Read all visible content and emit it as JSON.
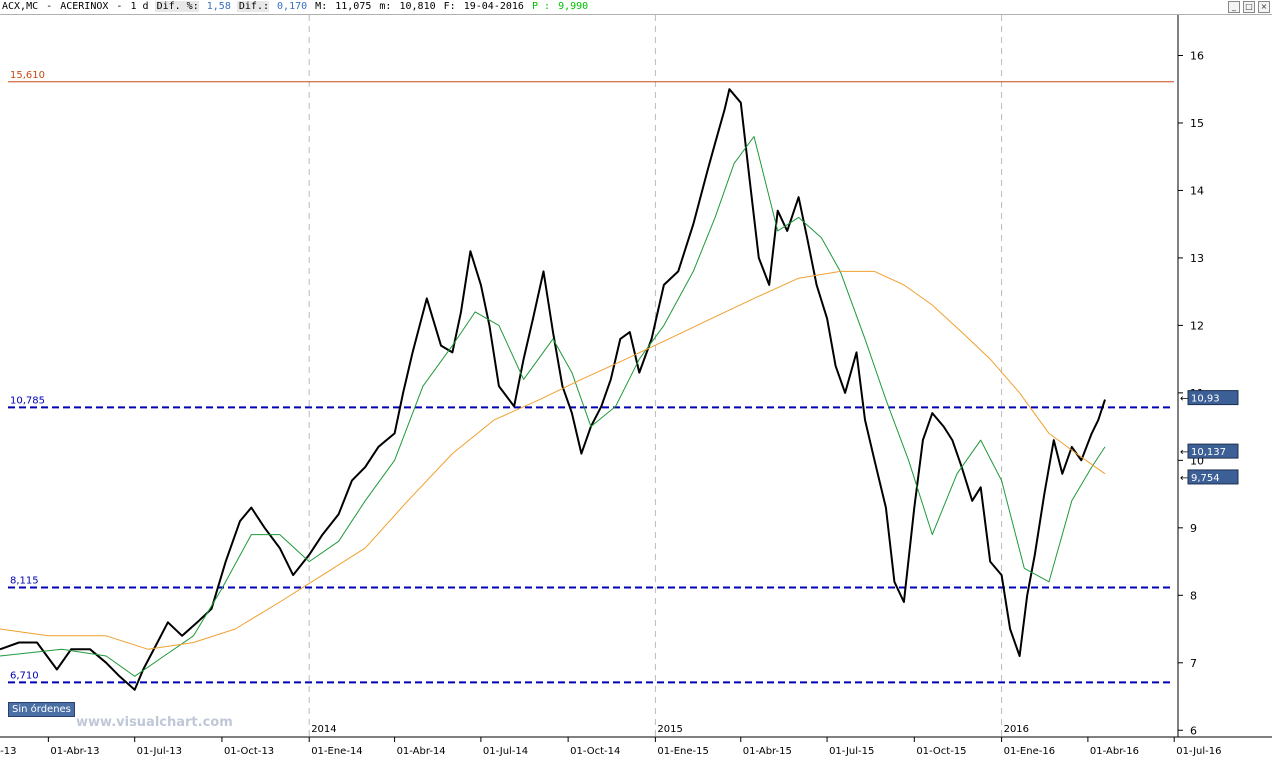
{
  "header": {
    "symbol": "ACX,MC",
    "name": "ACERINOX",
    "period": "1 d",
    "pct_label": "Dif. %:",
    "pct_value": "1,58",
    "dif_label": "Dif.:",
    "dif_value": "0,170",
    "max_label": "M:",
    "max_value": "11,075",
    "min_label": "m:",
    "min_value": "10,810",
    "date_label": "F:",
    "date_value": "19-04-2016",
    "price_label": "P :",
    "price_value": "9,990"
  },
  "window_buttons": [
    "_",
    "□",
    "×"
  ],
  "orders_button": "Sin órdenes",
  "watermark": "www.visualchart.com",
  "colors": {
    "price": "#000000",
    "ma_short": "#1f9a3a",
    "ma_long": "#f0a030",
    "resistance_line": "#c84a14",
    "support_line": "#0000b4",
    "badge": "#3c5f96",
    "grid": "#bbbbbb"
  },
  "chart_data": {
    "type": "line",
    "yticks": [
      6,
      7,
      8,
      9,
      10,
      11,
      12,
      13,
      14,
      15,
      16
    ],
    "ylim": [
      5.9,
      16.6
    ],
    "year_labels": [
      {
        "label": "2014",
        "x": "2014-01-01"
      },
      {
        "label": "2015",
        "x": "2015-01-01"
      },
      {
        "label": "2016",
        "x": "2016-01-01"
      }
    ],
    "xticks": [
      {
        "label": "01-Ene-13",
        "x": "2013-01-01"
      },
      {
        "label": "01-Abr-13",
        "x": "2013-04-01"
      },
      {
        "label": "01-Jul-13",
        "x": "2013-07-01"
      },
      {
        "label": "01-Oct-13",
        "x": "2013-10-01"
      },
      {
        "label": "01-Ene-14",
        "x": "2014-01-01"
      },
      {
        "label": "01-Abr-14",
        "x": "2014-04-01"
      },
      {
        "label": "01-Jul-14",
        "x": "2014-07-01"
      },
      {
        "label": "01-Oct-14",
        "x": "2014-10-01"
      },
      {
        "label": "01-Ene-15",
        "x": "2015-01-01"
      },
      {
        "label": "01-Abr-15",
        "x": "2015-04-01"
      },
      {
        "label": "01-Jul-15",
        "x": "2015-07-01"
      },
      {
        "label": "01-Oct-15",
        "x": "2015-10-01"
      },
      {
        "label": "01-Ene-16",
        "x": "2016-01-01"
      },
      {
        "label": "01-Abr-16",
        "x": "2016-04-01"
      },
      {
        "label": "01-Jul-16",
        "x": "2016-07-01"
      }
    ],
    "xlim": [
      "2013-02-09",
      "2016-07-05"
    ],
    "level_lines": [
      {
        "value": 15.61,
        "label": "15,610",
        "style": "solid",
        "color": "#c84a14"
      },
      {
        "value": 10.785,
        "label": "10,785",
        "style": "dashed",
        "color": "#0000b4"
      },
      {
        "value": 8.115,
        "label": "8,115",
        "style": "dashed",
        "color": "#0000b4"
      },
      {
        "value": 6.71,
        "label": "6,710",
        "style": "dashed",
        "color": "#0000b4"
      }
    ],
    "badges": [
      {
        "value": 10.93,
        "label": "10,93"
      },
      {
        "value": 10.137,
        "label": "10,137"
      },
      {
        "value": 9.754,
        "label": "9,754"
      }
    ],
    "series": [
      {
        "key": "price",
        "x": [
          "2013-02-09",
          "2013-03-01",
          "2013-03-20",
          "2013-04-10",
          "2013-04-25",
          "2013-05-15",
          "2013-06-01",
          "2013-06-15",
          "2013-07-01",
          "2013-07-10",
          "2013-07-25",
          "2013-08-05",
          "2013-08-20",
          "2013-09-05",
          "2013-09-20",
          "2013-10-05",
          "2013-10-20",
          "2013-11-01",
          "2013-11-15",
          "2013-12-01",
          "2013-12-15",
          "2014-01-01",
          "2014-01-15",
          "2014-02-01",
          "2014-02-15",
          "2014-03-01",
          "2014-03-15",
          "2014-04-01",
          "2014-04-10",
          "2014-04-20",
          "2014-05-05",
          "2014-05-20",
          "2014-06-01",
          "2014-06-10",
          "2014-06-20",
          "2014-07-01",
          "2014-07-10",
          "2014-07-20",
          "2014-08-05",
          "2014-08-15",
          "2014-08-25",
          "2014-09-05",
          "2014-09-15",
          "2014-09-25",
          "2014-10-05",
          "2014-10-15",
          "2014-10-25",
          "2014-11-05",
          "2014-11-15",
          "2014-11-25",
          "2014-12-05",
          "2014-12-15",
          "2014-12-28",
          "2015-01-10",
          "2015-01-25",
          "2015-02-10",
          "2015-02-25",
          "2015-03-05",
          "2015-03-15",
          "2015-03-20",
          "2015-04-01",
          "2015-04-10",
          "2015-04-20",
          "2015-05-01",
          "2015-05-10",
          "2015-05-20",
          "2015-06-01",
          "2015-06-10",
          "2015-06-20",
          "2015-07-01",
          "2015-07-10",
          "2015-07-20",
          "2015-08-01",
          "2015-08-10",
          "2015-08-20",
          "2015-09-01",
          "2015-09-10",
          "2015-09-20",
          "2015-10-01",
          "2015-10-10",
          "2015-10-20",
          "2015-11-01",
          "2015-11-10",
          "2015-11-20",
          "2015-12-01",
          "2015-12-10",
          "2015-12-20",
          "2016-01-01",
          "2016-01-10",
          "2016-01-20",
          "2016-01-28",
          "2016-02-05",
          "2016-02-15",
          "2016-02-25",
          "2016-03-05",
          "2016-03-15",
          "2016-03-25",
          "2016-04-05",
          "2016-04-12",
          "2016-04-19"
        ],
        "y": [
          7.2,
          7.3,
          7.3,
          6.9,
          7.2,
          7.2,
          7.0,
          6.8,
          6.6,
          6.9,
          7.3,
          7.6,
          7.4,
          7.6,
          7.8,
          8.5,
          9.1,
          9.3,
          9.0,
          8.7,
          8.3,
          8.6,
          8.9,
          9.2,
          9.7,
          9.9,
          10.2,
          10.4,
          11.0,
          11.6,
          12.4,
          11.7,
          11.6,
          12.2,
          13.1,
          12.6,
          12.0,
          11.1,
          10.8,
          11.5,
          12.1,
          12.8,
          11.9,
          11.1,
          10.7,
          10.1,
          10.5,
          10.8,
          11.2,
          11.8,
          11.9,
          11.3,
          11.8,
          12.6,
          12.8,
          13.5,
          14.3,
          14.7,
          15.2,
          15.5,
          15.3,
          14.2,
          13.0,
          12.6,
          13.7,
          13.4,
          13.9,
          13.3,
          12.6,
          12.1,
          11.4,
          11.0,
          11.6,
          10.6,
          10.0,
          9.3,
          8.2,
          7.9,
          9.3,
          10.3,
          10.7,
          10.5,
          10.3,
          9.9,
          9.4,
          9.6,
          8.5,
          8.3,
          7.5,
          7.1,
          8.0,
          8.6,
          9.5,
          10.3,
          9.8,
          10.2,
          10.0,
          10.4,
          10.6,
          10.9
        ]
      },
      {
        "key": "ma_short",
        "x": [
          "2013-02-09",
          "2013-04-15",
          "2013-06-01",
          "2013-07-01",
          "2013-08-01",
          "2013-09-01",
          "2013-10-01",
          "2013-11-01",
          "2013-12-01",
          "2014-01-01",
          "2014-02-01",
          "2014-03-01",
          "2014-04-01",
          "2014-05-01",
          "2014-06-01",
          "2014-06-25",
          "2014-07-20",
          "2014-08-15",
          "2014-09-15",
          "2014-10-05",
          "2014-10-25",
          "2014-11-20",
          "2014-12-15",
          "2015-01-10",
          "2015-02-10",
          "2015-03-05",
          "2015-03-25",
          "2015-04-15",
          "2015-05-10",
          "2015-06-01",
          "2015-06-25",
          "2015-07-15",
          "2015-08-10",
          "2015-09-01",
          "2015-09-25",
          "2015-10-20",
          "2015-11-15",
          "2015-12-10",
          "2016-01-01",
          "2016-01-25",
          "2016-02-20",
          "2016-03-15",
          "2016-04-05",
          "2016-04-19"
        ],
        "y": [
          7.1,
          7.2,
          7.1,
          6.8,
          7.1,
          7.4,
          8.1,
          8.9,
          8.9,
          8.5,
          8.8,
          9.4,
          10.0,
          11.1,
          11.7,
          12.2,
          12.0,
          11.2,
          11.8,
          11.3,
          10.5,
          10.8,
          11.5,
          12.0,
          12.8,
          13.6,
          14.4,
          14.8,
          13.4,
          13.6,
          13.3,
          12.8,
          11.8,
          10.9,
          10.0,
          8.9,
          9.8,
          10.3,
          9.7,
          8.4,
          8.2,
          9.4,
          9.9,
          10.2
        ]
      },
      {
        "key": "ma_long",
        "x": [
          "2013-02-09",
          "2013-04-01",
          "2013-06-01",
          "2013-07-15",
          "2013-09-01",
          "2013-10-15",
          "2013-12-01",
          "2014-01-15",
          "2014-03-01",
          "2014-04-15",
          "2014-06-01",
          "2014-07-15",
          "2014-09-01",
          "2014-10-15",
          "2014-12-01",
          "2015-01-15",
          "2015-03-01",
          "2015-04-15",
          "2015-06-01",
          "2015-07-15",
          "2015-08-20",
          "2015-09-20",
          "2015-10-20",
          "2015-11-20",
          "2015-12-20",
          "2016-01-20",
          "2016-02-20",
          "2016-03-20",
          "2016-04-19"
        ],
        "y": [
          7.5,
          7.4,
          7.4,
          7.2,
          7.3,
          7.5,
          7.9,
          8.3,
          8.7,
          9.4,
          10.1,
          10.6,
          10.9,
          11.2,
          11.5,
          11.8,
          12.1,
          12.4,
          12.7,
          12.8,
          12.8,
          12.6,
          12.3,
          11.9,
          11.5,
          11.0,
          10.4,
          10.1,
          9.8
        ]
      }
    ]
  }
}
